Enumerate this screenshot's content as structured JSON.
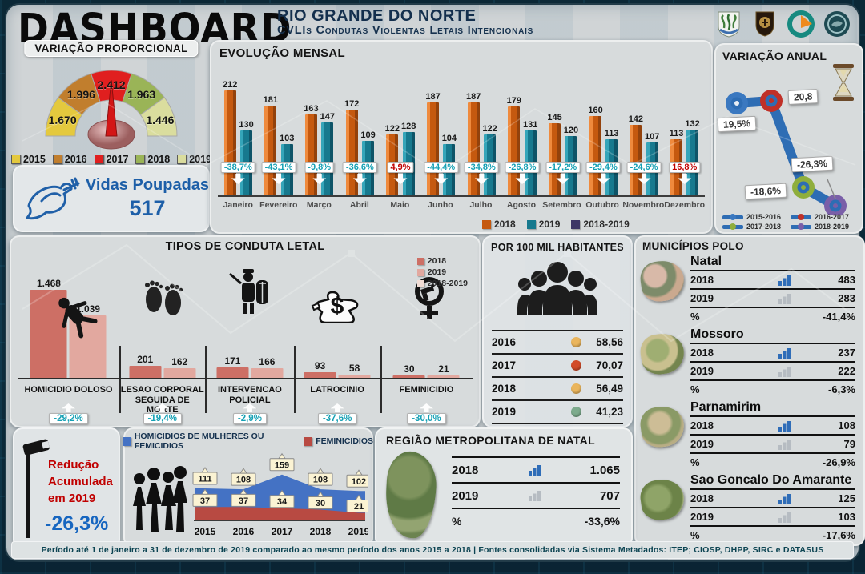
{
  "header": {
    "app_title": "DASHBOARD",
    "title": "RIO GRANDE DO NORTE",
    "subtitle": "CVLIs Condutas Violentas Letais Intencionais",
    "logos": [
      "rn-coat-of-arms",
      "police-shield",
      "security-agency-logo",
      "institute-emblem"
    ]
  },
  "vidas_poupadas": {
    "label": "Vidas Poupadas",
    "value": "517",
    "icon": "dove-icon"
  },
  "reducao": {
    "line1": "Redução",
    "line2": "Acumulada",
    "line3": "em 2019",
    "value": "-26,3%",
    "icon": "surveillance-camera-icon"
  },
  "footer": "Período até 1 de janeiro a 31 de dezembro de 2019 comparado  ao mesmo período dos anos 2015 a 2018 | Fontes  consolidadas  via Sistema  Metadados:  ITEP; CIOSP, DHPP, SIRC e DATASUS",
  "colors": {
    "accent_teal": "#14a0b4",
    "positive_red": "#c00000",
    "blue_text": "#1d5fa8",
    "gauge": [
      "#e4c93e",
      "#c17e2d",
      "#e01f1f",
      "#9ab457",
      "#dadd9e"
    ],
    "mensal": [
      "#c5590f",
      "#17798e",
      "#3d3666"
    ],
    "anual_line": "#2e6db4",
    "anual_points": [
      "#3a78c0",
      "#c03028",
      "#8fae3c",
      "#7a5fa8"
    ],
    "tipos_legend": [
      "#cd6f65",
      "#e2a89f",
      "#f2ddd5"
    ],
    "hab_dots": [
      "#eab55c",
      "#d24b28",
      "#eab55c",
      "#7dab8d"
    ],
    "fem": [
      "#4472c4",
      "#b84a42"
    ],
    "mun_bar_2018": "#2f6db8",
    "mun_bar_2019": "#b6bcc2"
  },
  "chart_data": [
    {
      "type": "gauge",
      "title": "VARIAÇÃO PROPORCIONAL",
      "categories": [
        "2015",
        "2016",
        "2017",
        "2018",
        "2019"
      ],
      "values": [
        1670,
        1996,
        2412,
        1963,
        1446
      ],
      "labels": [
        "1.670",
        "1.996",
        "2.412",
        "1.963",
        "1.446"
      ]
    },
    {
      "type": "bar",
      "title": "EVOLUÇÃO MENSAL",
      "categories": [
        "Janeiro",
        "Fevereiro",
        "Março",
        "Abril",
        "Maio",
        "Junho",
        "Julho",
        "Agosto",
        "Setembro",
        "Outubro",
        "Novembro",
        "Dezembro"
      ],
      "series": [
        {
          "name": "2018",
          "values": [
            212,
            181,
            163,
            172,
            122,
            187,
            187,
            179,
            145,
            160,
            142,
            113
          ]
        },
        {
          "name": "2019",
          "values": [
            130,
            103,
            147,
            109,
            128,
            104,
            122,
            131,
            120,
            113,
            107,
            132
          ]
        },
        {
          "name": "2018-2019",
          "values": [
            "-38,7%",
            "-43,1%",
            "-9,8%",
            "-36,6%",
            "4,9%",
            "-44,4%",
            "-34,8%",
            "-26,8%",
            "-17,2%",
            "-29,4%",
            "-24,6%",
            "16,8%"
          ]
        }
      ],
      "ylim": [
        0,
        212
      ],
      "legend_position": "bottom"
    },
    {
      "type": "line",
      "title": "VARIAÇÃO ANUAL",
      "categories": [
        "2015-2016",
        "2016-2017",
        "2017-2018",
        "2018-2019"
      ],
      "values": [
        19.5,
        20.8,
        -18.6,
        -26.3
      ],
      "labels": [
        "19,5%",
        "20,8",
        "-18,6%",
        "-26,3%"
      ],
      "icon": "hourglass-icon"
    },
    {
      "type": "bar",
      "title": "TIPOS DE CONDUTA LETAL",
      "categories": [
        "HOMICIDIO DOLOSO",
        "LESAO CORPORAL SEGUIDA DE MORTE",
        "INTERVENCAO POLICIAL",
        "LATROCINIO",
        "FEMINICIDIO"
      ],
      "icons": [
        "falling-person-icon",
        "footprints-icon",
        "police-officer-icon",
        "body-outline-dollar-icon",
        "female-symbol-gun-icon"
      ],
      "series": [
        {
          "name": "2018",
          "values": [
            1468,
            201,
            171,
            93,
            30
          ],
          "labels": [
            "1.468",
            "201",
            "171",
            "93",
            "30"
          ]
        },
        {
          "name": "2019",
          "values": [
            1039,
            162,
            166,
            58,
            21
          ],
          "labels": [
            "1.039",
            "162",
            "166",
            "58",
            "21"
          ]
        },
        {
          "name": "2018-2019",
          "values": [
            "-29,2%",
            "-19,4%",
            "-2,9%",
            "-37,6%",
            "-30,0%"
          ]
        }
      ]
    },
    {
      "type": "table",
      "title": "POR 100 MIL HABITANTES",
      "icon": "people-group-icon",
      "categories": [
        "2016",
        "2017",
        "2018",
        "2019"
      ],
      "values": [
        58.56,
        70.07,
        56.49,
        41.23
      ],
      "labels": [
        "58,56",
        "70,07",
        "56,49",
        "41,23"
      ]
    },
    {
      "type": "table",
      "title": "MUNICÍPIOS POLO",
      "columns": [
        "2018",
        "2019",
        "%"
      ],
      "rows": [
        {
          "name": "Natal",
          "v2018": "483",
          "v2019": "283",
          "pct": "-41,4%"
        },
        {
          "name": "Mossoro",
          "v2018": "237",
          "v2019": "222",
          "pct": "-6,3%"
        },
        {
          "name": "Parnamirim",
          "v2018": "108",
          "v2019": "79",
          "pct": "-26,9%"
        },
        {
          "name": "Sao Goncalo Do Amarante",
          "v2018": "125",
          "v2019": "103",
          "pct": "-17,6%"
        }
      ]
    },
    {
      "type": "area",
      "title": "HOMICIDIOS DE MULHERES OU FEMICIDIOS / FEMINICIDIOS",
      "icon": "women-group-icon",
      "categories": [
        "2015",
        "2016",
        "2017",
        "2018",
        "2019"
      ],
      "series": [
        {
          "name": "HOMICIDIOS  DE MULHERES  OU FEMICIDIOS",
          "values": [
            111,
            108,
            159,
            108,
            102
          ]
        },
        {
          "name": "FEMINICIDIOS",
          "values": [
            37,
            37,
            34,
            30,
            21
          ]
        }
      ]
    },
    {
      "type": "table",
      "title": "REGIÃO  METROPOLITANA  DE NATAL",
      "rows": [
        {
          "label": "2018",
          "value": "1.065"
        },
        {
          "label": "2019",
          "value": "707"
        },
        {
          "label": "%",
          "value": "-33,6%"
        }
      ]
    }
  ]
}
